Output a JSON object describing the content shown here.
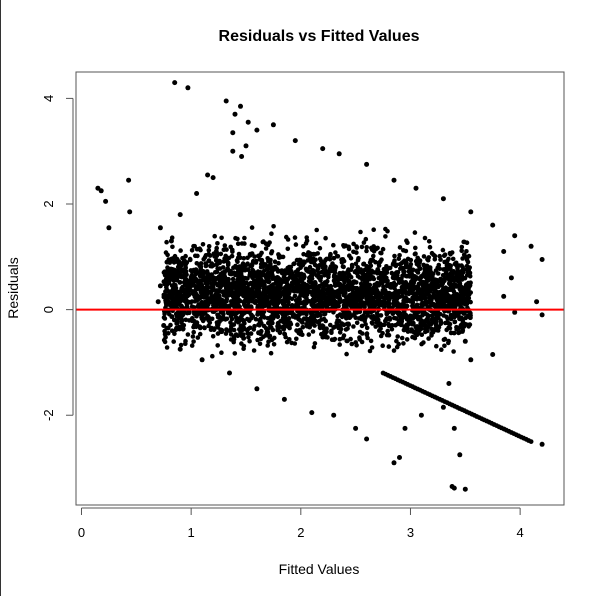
{
  "chart_data": {
    "type": "scatter",
    "title": "Residuals vs Fitted Values",
    "xlabel": "Fitted Values",
    "ylabel": "Residuals",
    "xlim": [
      -0.05,
      4.4
    ],
    "ylim": [
      -3.7,
      4.5
    ],
    "x_ticks": [
      "0",
      "1",
      "2",
      "3",
      "4"
    ],
    "y_ticks": [
      "-2",
      "0",
      "2",
      "4"
    ],
    "grid": false,
    "reference_line": {
      "y": 0,
      "color": "#ff0000"
    },
    "point_color": "#000000",
    "points": [
      [
        0.85,
        4.3
      ],
      [
        0.97,
        4.2
      ],
      [
        1.32,
        3.95
      ],
      [
        1.45,
        3.85
      ],
      [
        1.4,
        3.7
      ],
      [
        1.52,
        3.55
      ],
      [
        1.38,
        3.35
      ],
      [
        1.6,
        3.4
      ],
      [
        1.75,
        3.5
      ],
      [
        1.5,
        3.1
      ],
      [
        1.38,
        3.0
      ],
      [
        1.46,
        2.9
      ],
      [
        0.15,
        2.3
      ],
      [
        0.18,
        2.25
      ],
      [
        0.22,
        2.05
      ],
      [
        0.43,
        2.45
      ],
      [
        0.44,
        1.85
      ],
      [
        0.25,
        1.55
      ],
      [
        0.72,
        1.55
      ],
      [
        1.2,
        2.5
      ],
      [
        1.95,
        3.2
      ],
      [
        2.2,
        3.05
      ],
      [
        2.35,
        2.95
      ],
      [
        2.6,
        2.75
      ],
      [
        2.85,
        2.45
      ],
      [
        3.05,
        2.3
      ],
      [
        3.3,
        2.1
      ],
      [
        3.55,
        1.85
      ],
      [
        3.75,
        1.6
      ],
      [
        3.95,
        1.4
      ],
      [
        4.1,
        1.2
      ],
      [
        4.2,
        0.95
      ],
      [
        3.85,
        1.1
      ],
      [
        3.92,
        0.6
      ],
      [
        3.85,
        0.25
      ],
      [
        3.95,
        -0.05
      ],
      [
        4.15,
        0.15
      ],
      [
        4.2,
        -0.1
      ],
      [
        3.75,
        -0.85
      ],
      [
        3.55,
        -0.95
      ],
      [
        3.5,
        -0.6
      ],
      [
        3.35,
        -1.4
      ],
      [
        3.3,
        -1.85
      ],
      [
        3.4,
        -2.25
      ],
      [
        3.45,
        -2.75
      ],
      [
        3.38,
        -3.35
      ],
      [
        3.4,
        -3.38
      ],
      [
        3.5,
        -3.4
      ],
      [
        3.1,
        -2.0
      ],
      [
        2.95,
        -2.25
      ],
      [
        2.9,
        -2.8
      ],
      [
        2.85,
        -2.9
      ],
      [
        2.6,
        -2.45
      ],
      [
        2.5,
        -2.25
      ],
      [
        2.3,
        -2.0
      ],
      [
        2.1,
        -1.95
      ],
      [
        1.85,
        -1.7
      ],
      [
        1.6,
        -1.5
      ],
      [
        1.35,
        -1.2
      ],
      [
        1.1,
        -0.95
      ],
      [
        0.9,
        -0.75
      ],
      [
        0.75,
        -0.3
      ],
      [
        0.7,
        0.15
      ],
      [
        0.72,
        0.45
      ],
      [
        0.78,
        0.9
      ],
      [
        0.82,
        1.3
      ],
      [
        0.9,
        1.8
      ],
      [
        1.05,
        2.2
      ],
      [
        1.15,
        2.55
      ],
      [
        4.2,
        -2.55
      ]
    ],
    "trail_line": {
      "x": [
        2.75,
        4.1
      ],
      "y": [
        -1.2,
        -2.5
      ]
    },
    "cloud": {
      "x_range": [
        0.75,
        3.55
      ],
      "center_y": 0.3
    }
  }
}
